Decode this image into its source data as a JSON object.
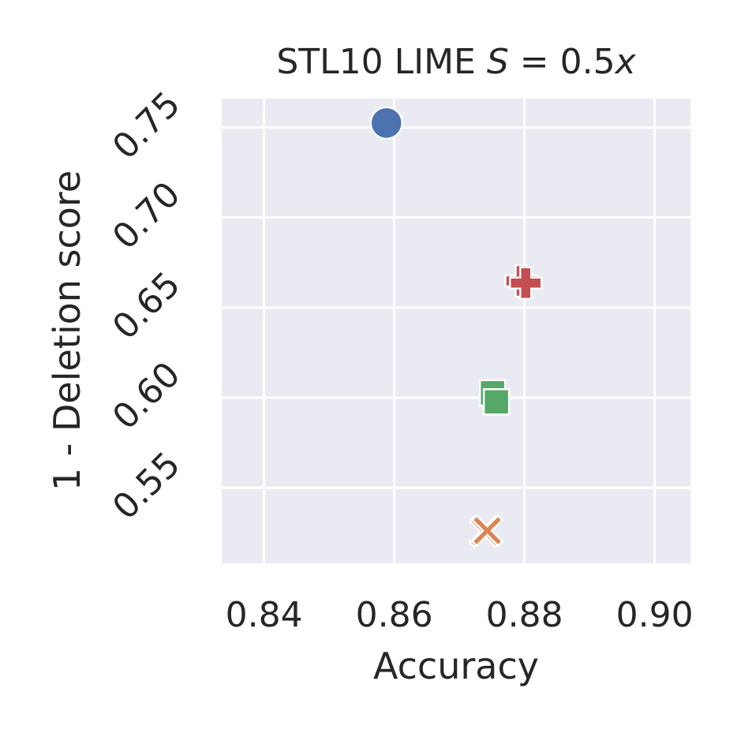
{
  "chart_data": {
    "type": "scatter",
    "title_prefix": "STL10 LIME ",
    "title_math": "S",
    "title_mid": " = 0.5",
    "title_var": "x",
    "xlabel": "Accuracy",
    "ylabel": "1 - Deletion score",
    "xlim": [
      0.8335,
      0.9055
    ],
    "ylim": [
      0.508,
      0.766
    ],
    "xticks": [
      0.84,
      0.86,
      0.88,
      0.9
    ],
    "xtick_labels": [
      "0.84",
      "0.86",
      "0.88",
      "0.90"
    ],
    "yticks": [
      0.55,
      0.6,
      0.65,
      0.7,
      0.75
    ],
    "ytick_labels": [
      "0.55",
      "0.60",
      "0.65",
      "0.70",
      "0.75"
    ],
    "grid": true,
    "background": "#eaeaf2",
    "series": [
      {
        "marker": "circle",
        "color": "#4c72b0",
        "points": [
          [
            0.8588,
            0.7525
          ]
        ]
      },
      {
        "marker": "x",
        "color": "#dd8452",
        "points": [
          [
            0.8739,
            0.5256
          ],
          [
            0.8743,
            0.5262
          ]
        ]
      },
      {
        "marker": "square",
        "color": "#55a868",
        "points": [
          [
            0.8751,
            0.6027
          ],
          [
            0.8757,
            0.5977
          ]
        ]
      },
      {
        "marker": "plus",
        "color": "#c44e52",
        "points": [
          [
            0.8795,
            0.6648
          ],
          [
            0.8802,
            0.6636
          ]
        ]
      }
    ]
  }
}
